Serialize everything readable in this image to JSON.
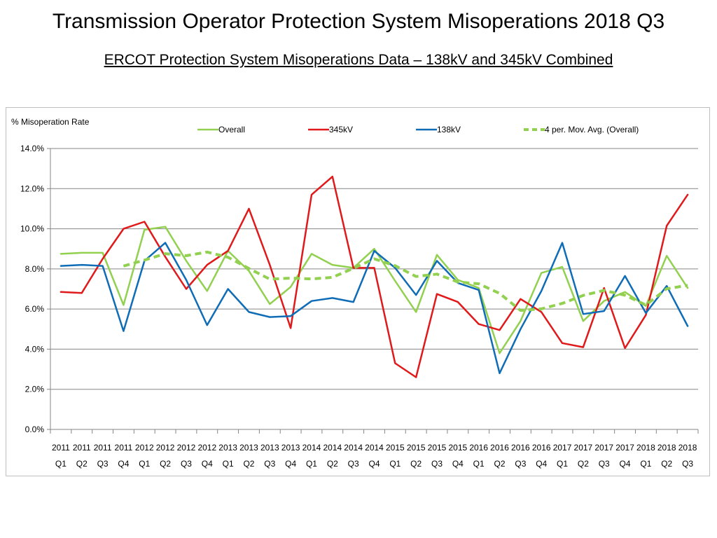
{
  "page": {
    "title": "Transmission Operator Protection System Misoperations 2018 Q3",
    "subtitle": "ERCOT Protection System Misoperations Data – 138kV and 345kV Combined"
  },
  "chart_data": {
    "type": "line",
    "ylabel": "% Misoperation Rate",
    "ylim": [
      0,
      14
    ],
    "yticks": [
      "0.0%",
      "2.0%",
      "4.0%",
      "6.0%",
      "8.0%",
      "10.0%",
      "12.0%",
      "14.0%"
    ],
    "legend_position": "top",
    "categories": [
      [
        "2011",
        "Q1"
      ],
      [
        "2011",
        "Q2"
      ],
      [
        "2011",
        "Q3"
      ],
      [
        "2011",
        "Q4"
      ],
      [
        "2012",
        "Q1"
      ],
      [
        "2012",
        "Q2"
      ],
      [
        "2012",
        "Q3"
      ],
      [
        "2012",
        "Q4"
      ],
      [
        "2013",
        "Q1"
      ],
      [
        "2013",
        "Q2"
      ],
      [
        "2013",
        "Q3"
      ],
      [
        "2013",
        "Q4"
      ],
      [
        "2014",
        "Q1"
      ],
      [
        "2014",
        "Q2"
      ],
      [
        "2014",
        "Q3"
      ],
      [
        "2014",
        "Q4"
      ],
      [
        "2015",
        "Q1"
      ],
      [
        "2015",
        "Q2"
      ],
      [
        "2015",
        "Q3"
      ],
      [
        "2015",
        "Q4"
      ],
      [
        "2016",
        "Q1"
      ],
      [
        "2016",
        "Q2"
      ],
      [
        "2016",
        "Q3"
      ],
      [
        "2016",
        "Q4"
      ],
      [
        "2017",
        "Q1"
      ],
      [
        "2017",
        "Q2"
      ],
      [
        "2017",
        "Q3"
      ],
      [
        "2017",
        "Q4"
      ],
      [
        "2018",
        "Q1"
      ],
      [
        "2018",
        "Q2"
      ],
      [
        "2018",
        "Q3"
      ]
    ],
    "series": [
      {
        "name": "Overall",
        "color": "#92d050",
        "style": "solid",
        "values": [
          8.75,
          8.8,
          8.8,
          6.2,
          9.95,
          10.1,
          8.4,
          6.9,
          8.9,
          7.9,
          6.25,
          7.1,
          8.75,
          8.2,
          8.05,
          9.0,
          7.4,
          5.85,
          8.7,
          7.45,
          7.05,
          3.8,
          5.4,
          7.8,
          8.1,
          5.4,
          6.4,
          6.85,
          6.15,
          8.65,
          7.05
        ]
      },
      {
        "name": "345kV",
        "color": "#e0191b",
        "style": "solid",
        "values": [
          6.85,
          6.8,
          8.5,
          10.0,
          10.35,
          8.6,
          7.0,
          8.2,
          8.9,
          11.0,
          8.2,
          5.05,
          11.7,
          12.6,
          8.05,
          8.05,
          3.3,
          2.6,
          6.75,
          6.35,
          5.25,
          4.95,
          6.5,
          5.85,
          4.3,
          4.1,
          7.05,
          4.05,
          5.7,
          10.15,
          11.7
        ]
      },
      {
        "name": "138kV",
        "color": "#0f6cb6",
        "style": "solid",
        "values": [
          8.15,
          8.2,
          8.15,
          4.9,
          8.4,
          9.3,
          7.45,
          5.2,
          7.0,
          5.85,
          5.6,
          5.65,
          6.4,
          6.55,
          6.35,
          8.9,
          8.05,
          6.7,
          8.4,
          7.3,
          6.95,
          2.8,
          5.0,
          6.9,
          9.3,
          5.75,
          5.9,
          7.65,
          5.8,
          7.15,
          5.15
        ]
      },
      {
        "name": "4 per. Mov. Avg. (Overall)",
        "color": "#92d050",
        "style": "dashed",
        "values": [
          null,
          null,
          null,
          8.14,
          8.44,
          8.76,
          8.66,
          8.84,
          8.58,
          8.02,
          7.49,
          7.54,
          7.5,
          7.58,
          8.03,
          8.5,
          8.16,
          7.62,
          7.74,
          7.35,
          7.26,
          6.78,
          5.93,
          6.01,
          6.28,
          6.68,
          6.93,
          6.69,
          6.2,
          7.01,
          7.18
        ]
      }
    ]
  }
}
